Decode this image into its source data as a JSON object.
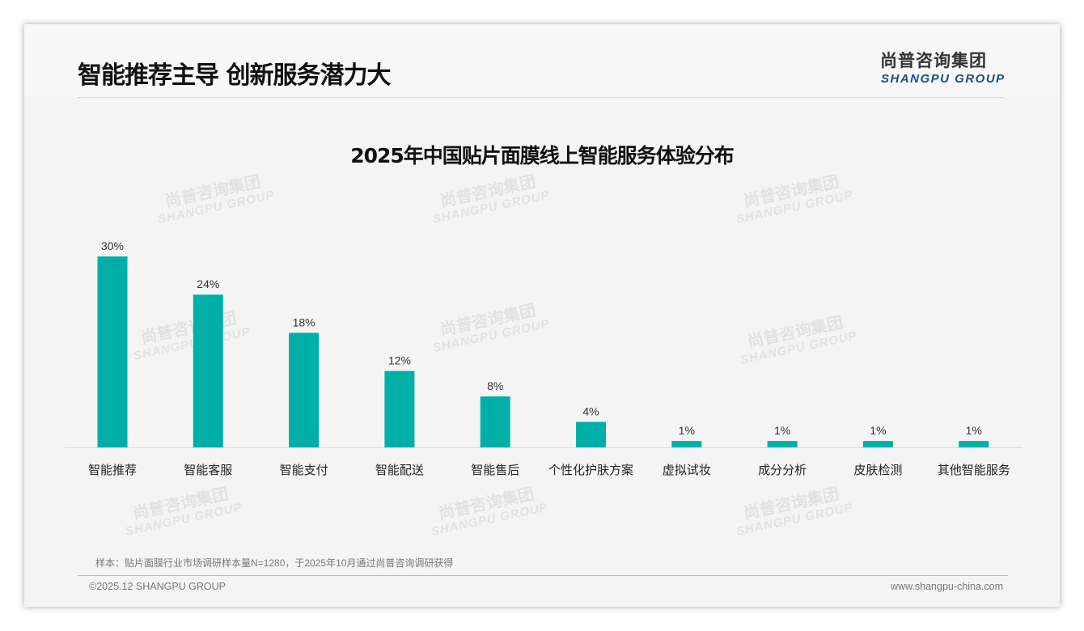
{
  "header": {
    "title": "智能推荐主导 创新服务潜力大",
    "logo_cn": "尚普咨询集团",
    "logo_en": "SHANGPU GROUP"
  },
  "watermark": {
    "cn": "尚普咨询集团",
    "en": "SHANGPU GROUP"
  },
  "chart_data": {
    "type": "bar",
    "title": "2025年中国贴片面膜线上智能服务体验分布",
    "categories": [
      "智能推荐",
      "智能客服",
      "智能支付",
      "智能配送",
      "智能售后",
      "个性化护肤方案",
      "虚拟试妆",
      "成分分析",
      "皮肤检测",
      "其他智能服务"
    ],
    "values": [
      30,
      24,
      18,
      12,
      8,
      4,
      1,
      1,
      1,
      1
    ],
    "labels": [
      "30%",
      "24%",
      "18%",
      "12%",
      "8%",
      "4%",
      "1%",
      "1%",
      "1%",
      "1%"
    ],
    "unit": "%",
    "ylim": [
      0,
      30
    ],
    "grid": false,
    "color": "#00b0a8"
  },
  "footer": {
    "note": "样本：贴片面膜行业市场调研样本量N=1280，于2025年10月通过尚普咨询调研获得",
    "copyright": "©2025.12 SHANGPU GROUP",
    "url": "www.shangpu-china.com"
  }
}
